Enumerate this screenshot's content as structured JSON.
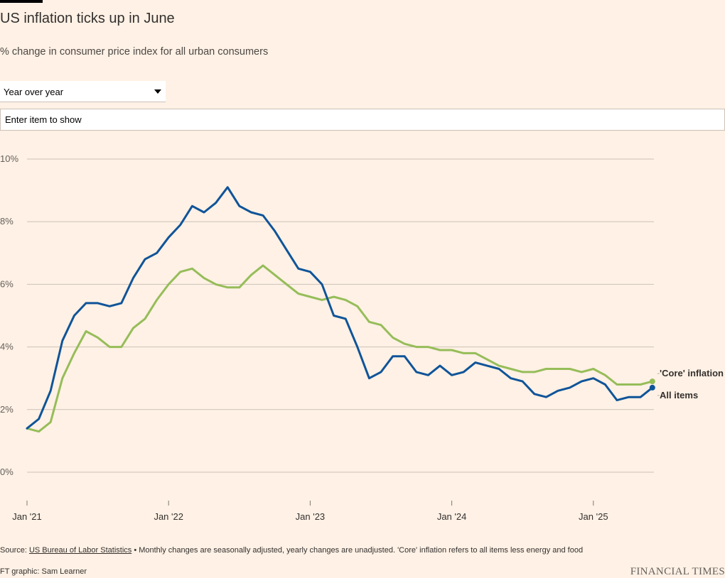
{
  "header": {
    "title": "US inflation ticks up in June",
    "subtitle": "% change in consumer price index for all urban consumers"
  },
  "controls": {
    "period_select": {
      "selected": "Year over year"
    },
    "item_search": {
      "placeholder": "Enter item to show",
      "value": ""
    }
  },
  "footer": {
    "source_prefix": "Source: ",
    "source_link": "US Bureau of Labor Statistics",
    "source_note": " • Monthly changes are seasonally adjusted, yearly changes are unadjusted. 'Core' inflation refers to all items less energy and food",
    "credit": "FT graphic: Sam Learner",
    "brand": "FINANCIAL TIMES"
  },
  "colors": {
    "background": "#fff1e5",
    "all_items": "#0f5499",
    "core": "#96bd59",
    "grid": "#ccc1b7",
    "text": "#33302e"
  },
  "chart_data": {
    "type": "line",
    "title": "US inflation ticks up in June",
    "subtitle": "% change in consumer price index for all urban consumers",
    "xlabel": "",
    "ylabel": "",
    "ylim": [
      0,
      10
    ],
    "y_ticks": [
      {
        "value": 10,
        "label": "10%"
      },
      {
        "value": 8,
        "label": "8%"
      },
      {
        "value": 6,
        "label": "6%"
      },
      {
        "value": 4,
        "label": "4%"
      },
      {
        "value": 2,
        "label": "2%"
      },
      {
        "value": 0,
        "label": "0%"
      }
    ],
    "x_start": "2021-01",
    "x_ticks": [
      {
        "index": 0,
        "label": "Jan '21"
      },
      {
        "index": 12,
        "label": "Jan '22"
      },
      {
        "index": 24,
        "label": "Jan '23"
      },
      {
        "index": 36,
        "label": "Jan '24"
      },
      {
        "index": 48,
        "label": "Jan '25"
      }
    ],
    "series": [
      {
        "name": "'Core' inflation",
        "color": "#96bd59",
        "values": [
          1.4,
          1.3,
          1.6,
          3.0,
          3.8,
          4.5,
          4.3,
          4.0,
          4.0,
          4.6,
          4.9,
          5.5,
          6.0,
          6.4,
          6.5,
          6.2,
          6.0,
          5.9,
          5.9,
          6.3,
          6.6,
          6.3,
          6.0,
          5.7,
          5.6,
          5.5,
          5.6,
          5.5,
          5.3,
          4.8,
          4.7,
          4.3,
          4.1,
          4.0,
          4.0,
          3.9,
          3.9,
          3.8,
          3.8,
          3.6,
          3.4,
          3.3,
          3.2,
          3.2,
          3.3,
          3.3,
          3.3,
          3.2,
          3.3,
          3.1,
          2.8,
          2.8,
          2.8,
          2.9
        ]
      },
      {
        "name": "All items",
        "color": "#0f5499",
        "values": [
          1.4,
          1.7,
          2.6,
          4.2,
          5.0,
          5.4,
          5.4,
          5.3,
          5.4,
          6.2,
          6.8,
          7.0,
          7.5,
          7.9,
          8.5,
          8.3,
          8.6,
          9.1,
          8.5,
          8.3,
          8.2,
          7.7,
          7.1,
          6.5,
          6.4,
          6.0,
          5.0,
          4.9,
          4.0,
          3.0,
          3.2,
          3.7,
          3.7,
          3.2,
          3.1,
          3.4,
          3.1,
          3.2,
          3.5,
          3.4,
          3.3,
          3.0,
          2.9,
          2.5,
          2.4,
          2.6,
          2.7,
          2.9,
          3.0,
          2.8,
          2.3,
          2.4,
          2.4,
          2.7
        ]
      }
    ]
  }
}
